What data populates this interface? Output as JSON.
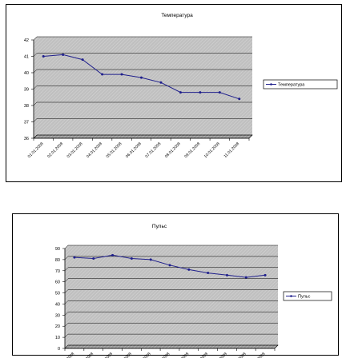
{
  "chart_data": [
    {
      "type": "line",
      "title": "Температура",
      "xlabel": "",
      "ylabel": "",
      "ylim": [
        36,
        42
      ],
      "yticks": [
        36,
        37,
        38,
        39,
        40,
        41,
        42
      ],
      "categories": [
        "01.01.2008",
        "02.01.2008",
        "03.01.2008",
        "04.01.2008",
        "05.01.2008",
        "06.01.2008",
        "07.01.2008",
        "08.01.2008",
        "09.01.2008",
        "10.01.2008",
        "11.01.2008"
      ],
      "series": [
        {
          "name": "Температура",
          "color": "#1f1f8c",
          "values": [
            41.0,
            41.1,
            40.8,
            39.9,
            39.9,
            39.7,
            39.4,
            38.8,
            38.8,
            38.8,
            38.4
          ]
        }
      ],
      "grid": true,
      "plot_background": "#c0c0c0",
      "legend": "right"
    },
    {
      "type": "line",
      "title": "Пульс",
      "xlabel": "",
      "ylabel": "",
      "ylim": [
        0,
        90
      ],
      "yticks": [
        0,
        10,
        20,
        30,
        40,
        50,
        60,
        70,
        80,
        90
      ],
      "categories": [
        "01.01.2008",
        "02.01.2008",
        "03.01.2008",
        "04.01.2008",
        "05.01.2008",
        "06.01.2008",
        "07.01.2008",
        "08.01.2008",
        "09.01.2008",
        "10.01.2008",
        "11.01.2008"
      ],
      "series": [
        {
          "name": "Пульс",
          "color": "#1f1f8c",
          "values": [
            82,
            81,
            84,
            81,
            80,
            75,
            71,
            68,
            66,
            64,
            66
          ]
        }
      ],
      "grid": true,
      "plot_background": "#c0c0c0",
      "legend": "right"
    }
  ]
}
